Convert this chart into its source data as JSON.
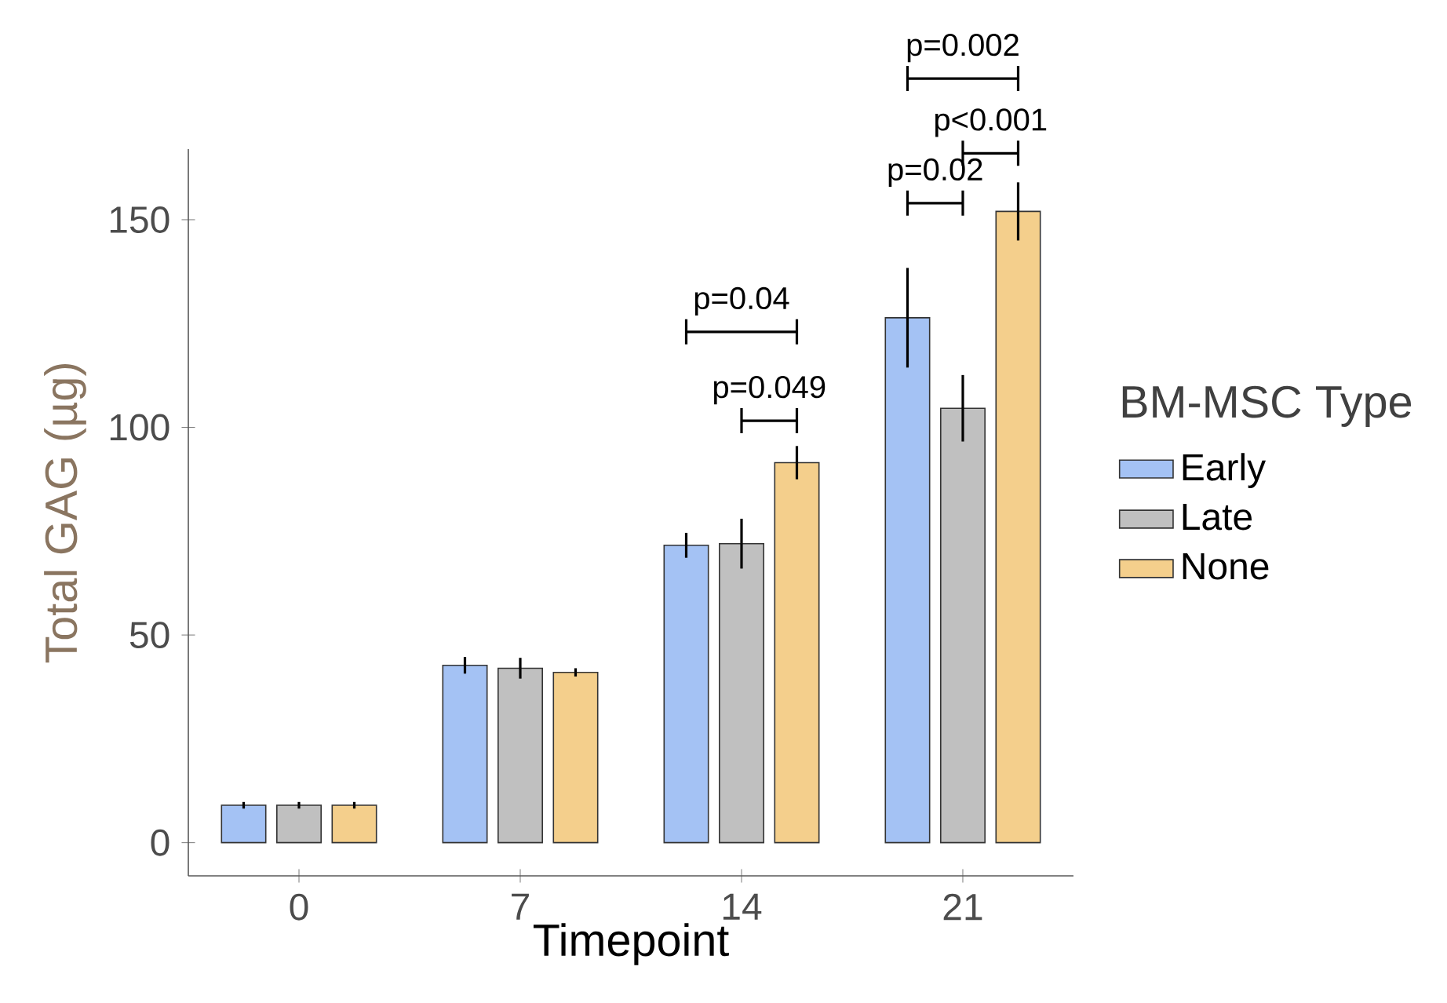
{
  "chart_data": {
    "type": "bar",
    "xlabel": "Timepoint",
    "ylabel": "Total GAG (µg)",
    "legend_title": "BM-MSC Type",
    "categories": [
      "0",
      "7",
      "14",
      "21"
    ],
    "series": [
      {
        "name": "Early",
        "color": "#a4c2f4",
        "values": [
          9,
          42.7,
          71.6,
          126.4
        ],
        "errors": [
          0.8,
          2,
          3,
          12
        ]
      },
      {
        "name": "Late",
        "color": "#c0c0c0",
        "values": [
          9,
          42,
          72,
          104.6
        ],
        "errors": [
          0.8,
          2.5,
          6,
          8
        ]
      },
      {
        "name": "None",
        "color": "#f4cf8c",
        "values": [
          9,
          41,
          91.5,
          152
        ],
        "errors": [
          0.8,
          1,
          4,
          7
        ]
      }
    ],
    "ylim": [
      -8,
      167
    ],
    "yticks": [
      0,
      50,
      100,
      150
    ],
    "legend": "right",
    "annotations": [
      "p=0.04",
      "p=0.049",
      "p=0.002",
      "p<0.001",
      "p=0.02"
    ]
  }
}
